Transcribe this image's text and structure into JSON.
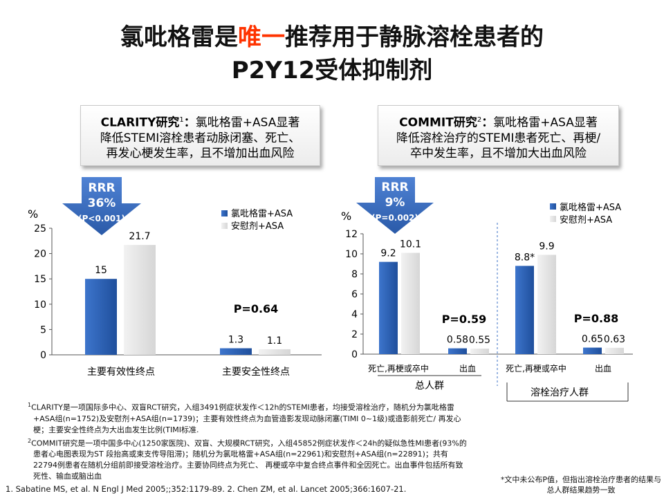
{
  "title": {
    "line1_pre": "氯吡格雷是",
    "line1_highlight": "唯一",
    "line1_post": "推荐用于静脉溶栓患者的",
    "line2": "P2Y12受体抑制剂"
  },
  "callouts": {
    "left": {
      "lead": "CLARITY研究",
      "sup": "1",
      "lead_suffix": "：",
      "line1": "氯吡格雷+ASA显著",
      "line2": "降低STEMI溶栓患者动脉闭塞、死亡、",
      "line3": "再发心梗发生率，且不增加出血风险"
    },
    "right": {
      "lead": "COMMIT研究",
      "sup": "2",
      "lead_suffix": "：",
      "line1": "氯吡格雷+ASA显著",
      "line2": "降低溶栓治疗的STEMI患者死亡、再梗/",
      "line3": "卒中发生率，且不增加大出血风险"
    }
  },
  "colors": {
    "series_clopidogrel": "#2e63b8",
    "series_placebo": "#e2e2e2",
    "arrow": "#3a6fc4",
    "title_highlight": "#ff3300"
  },
  "chart_data": [
    {
      "type": "bar",
      "unit": "%",
      "ylim": [
        0,
        25
      ],
      "yticks": [
        0,
        5,
        10,
        15,
        20,
        25
      ],
      "categories": [
        "主要有效性终点",
        "主要安全性终点"
      ],
      "series": [
        {
          "name": "氯吡格雷+ASA",
          "values": [
            15,
            1.3
          ]
        },
        {
          "name": "安慰剂+ASA",
          "values": [
            21.7,
            1.1
          ]
        }
      ],
      "value_labels": [
        [
          "15",
          "1.3"
        ],
        [
          "21.7",
          "1.1"
        ]
      ],
      "annotations": {
        "rrr": "RRR",
        "rrr_value": "36%",
        "rrr_p": "(P<0.001)",
        "p_text": "P=0.64"
      },
      "legend": "top-right",
      "grid": false
    },
    {
      "type": "bar",
      "unit": "%",
      "ylim": [
        0,
        12
      ],
      "yticks": [
        0,
        2,
        4,
        6,
        8,
        10,
        12
      ],
      "groups": [
        "总人群",
        "溶栓治疗人群"
      ],
      "categories": [
        "死亡,再梗或卒中",
        "出血",
        "死亡,再梗或卒中",
        "出血"
      ],
      "series": [
        {
          "name": "氯吡格雷+ASA",
          "values": [
            9.2,
            0.58,
            8.8,
            0.65
          ]
        },
        {
          "name": "安慰剂+ASA",
          "values": [
            10.1,
            0.55,
            9.9,
            0.63
          ]
        }
      ],
      "value_labels": [
        [
          "9.2",
          "0.58",
          "8.8*",
          "0.65"
        ],
        [
          "10.1",
          "0.55",
          "9.9",
          "0.63"
        ]
      ],
      "annotations": {
        "rrr": "RRR",
        "rrr_value": "9%",
        "rrr_p": "(P=0.002)",
        "p_text_1": "P=0.59",
        "p_text_2": "P=0.88"
      },
      "legend": "top-right",
      "grid": false
    }
  ],
  "footnotes": {
    "f1_sup": "1",
    "f1": "CLARITY是一项国际多中心、双盲RCT研究，入组3491例症状发作＜12h的STEMI患者，均接受溶栓治疗，随机分为氯吡格雷+ASA组(n=1752)及安慰剂+ASA组(n=1739)；主要有效性终点为血管造影发现动脉闭塞(TIMI 0~1级)或造影前死亡/ 再发心梗；主要安全性终点为大出血发生比例(TIMI标准.",
    "f2_sup": "2",
    "f2": "COMMIT研究是一项中国多中心(1250家医院)、双盲、大规模RCT研究，入组45852例症状发作＜24h的疑似急性MI患者(93%的患者心电图表现为ST 段抬高或束支传导阻滞)；随机分为氯吡格雷+ASA组(n=22961)和安慰剂+ASA组(n=22891)；共有22794例患者在随机分组前即接受溶栓治疗。主要协同终点为死亡、 再梗或卒中复合终点事件和全因死亡。出血事件包括所有致死性、输血或脑出血"
  },
  "references": "1. Sabatine MS, et al. N Engl J Med 2005;;352:1179-89.  2. Chen ZM, et al. Lancet 2005;366:1607-21.",
  "note": "*文中未公布P值，但指出溶栓治疗患者的结果与总人群结果趋势一致"
}
